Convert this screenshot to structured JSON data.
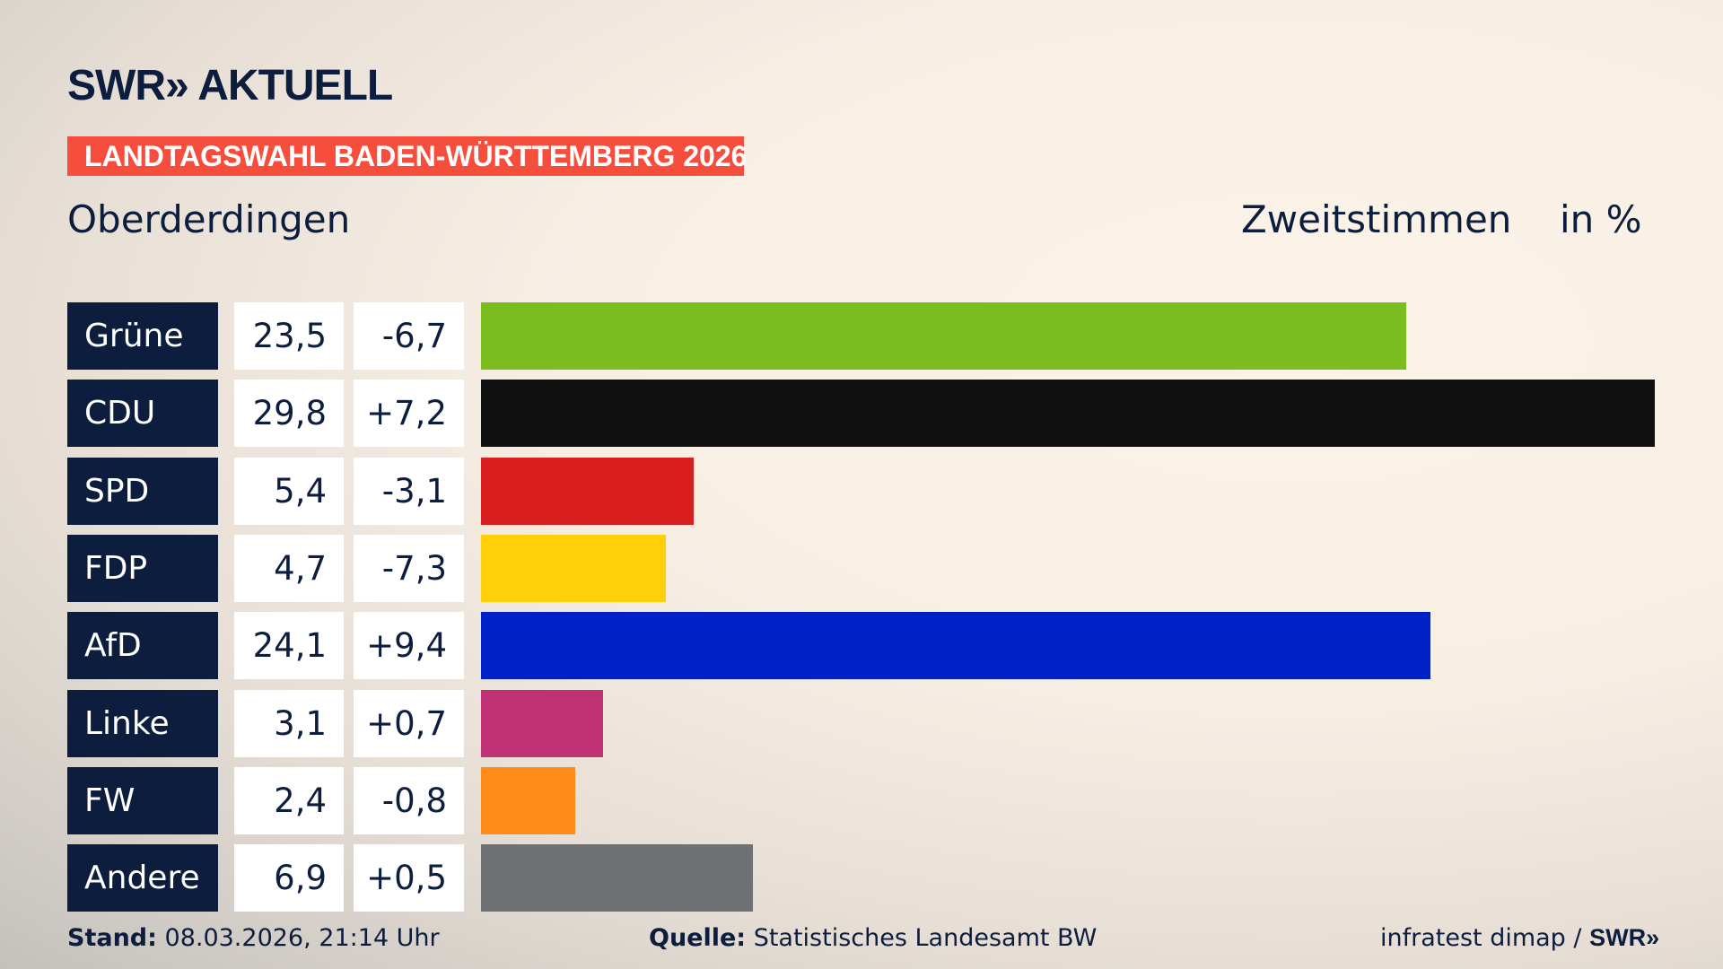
{
  "header": {
    "logo": "SWR» AKTUELL",
    "banner": "LANDTAGSWAHL BADEN-WÜRTTEMBERG 2026",
    "place": "Oberderdingen",
    "measure": "Zweitstimmen",
    "unit": "in %"
  },
  "chart_data": {
    "type": "bar",
    "orientation": "horizontal",
    "categories": [
      "Grüne",
      "CDU",
      "SPD",
      "FDP",
      "AfD",
      "Linke",
      "FW",
      "Andere"
    ],
    "values": [
      23.5,
      29.8,
      5.4,
      4.7,
      24.1,
      3.1,
      2.4,
      6.9
    ],
    "value_labels": [
      "23,5",
      "29,8",
      "5,4",
      "4,7",
      "24,1",
      "3,1",
      "2,4",
      "6,9"
    ],
    "diff_labels": [
      "-6,7",
      "+7,2",
      "-3,1",
      "-7,3",
      "+9,4",
      "+0,7",
      "-0,8",
      "+0,5"
    ],
    "diffs": [
      -6.7,
      7.2,
      -3.1,
      -7.3,
      9.4,
      0.7,
      -0.8,
      0.5
    ],
    "colors": [
      "#7bbd1e",
      "#111111",
      "#d81e1e",
      "#ffd00a",
      "#0021c7",
      "#c03275",
      "#ff8c1a",
      "#707173"
    ],
    "xlim": [
      0,
      29.8
    ],
    "grid": false
  },
  "footer": {
    "stand_label": "Stand:",
    "stand_value": "08.03.2026, 21:14 Uhr",
    "source_label": "Quelle:",
    "source_value": "Statistisches Landesamt BW",
    "credit": "infratest dimap / ",
    "credit_logo": "SWR»"
  }
}
